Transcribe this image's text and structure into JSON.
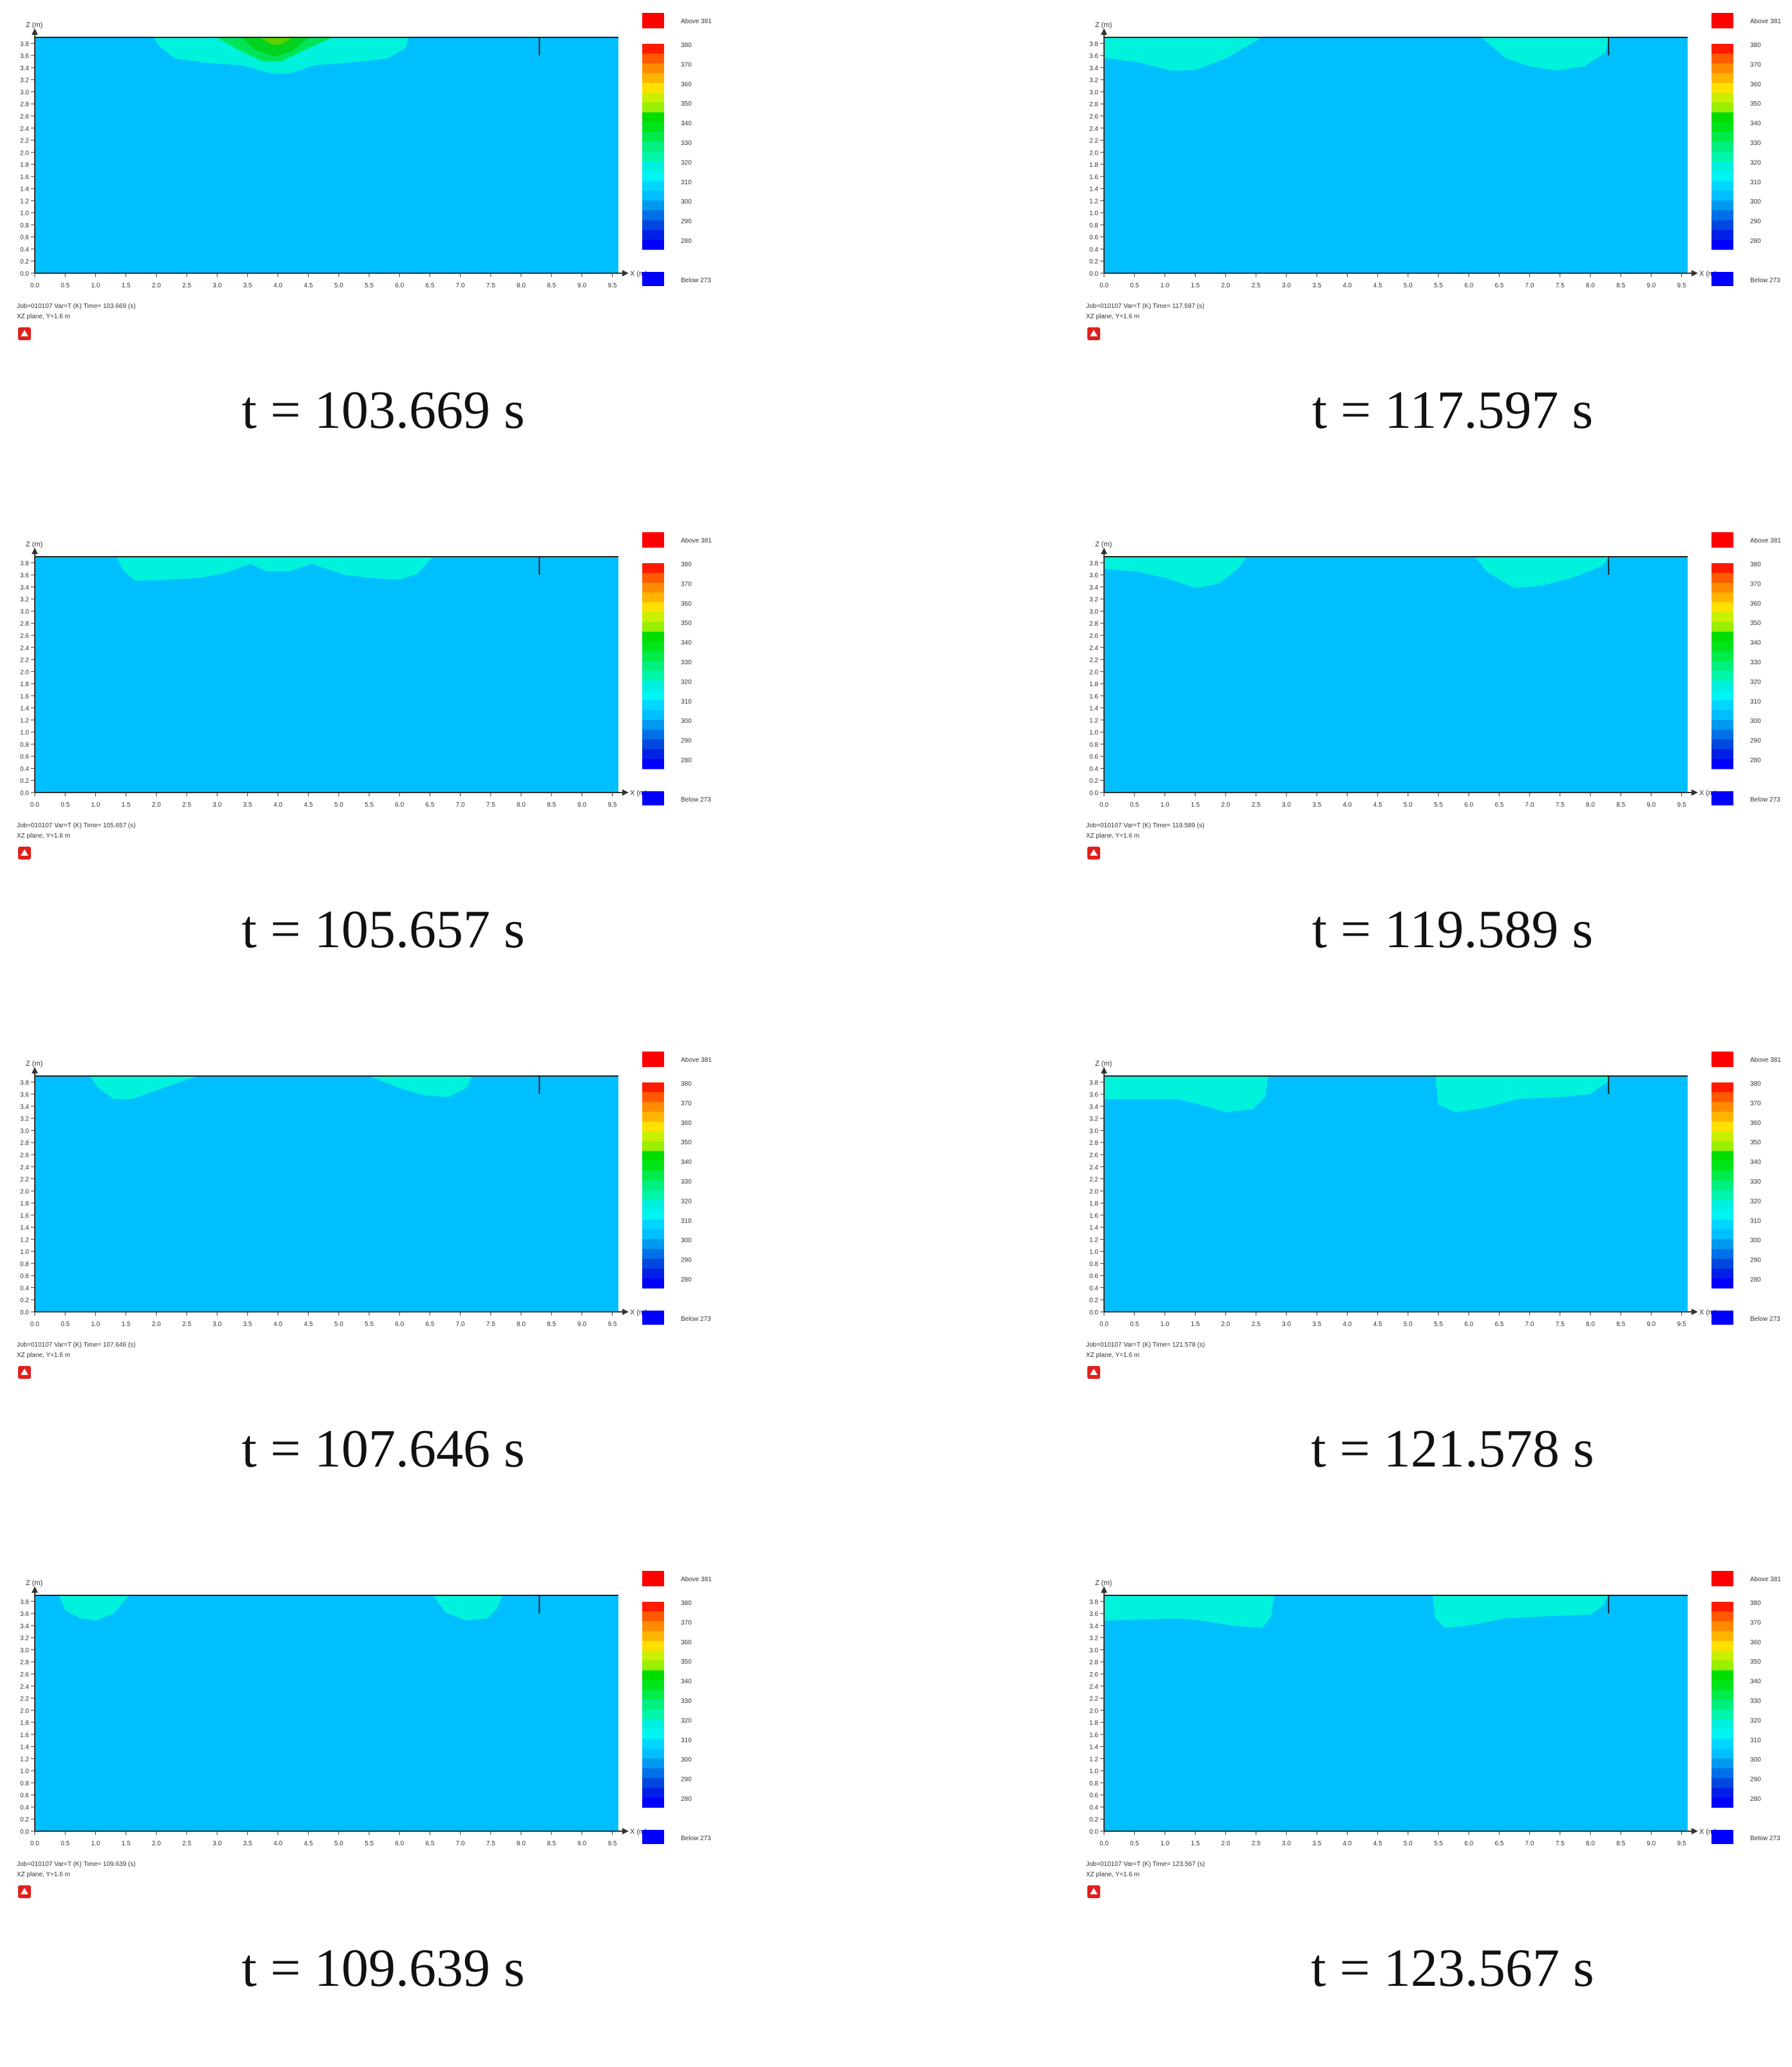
{
  "chart_data": [
    {
      "type": "heatmap",
      "time_label": "t = 103.669 s",
      "info_line1": "Job=010107   Var=T (K)  Time= 103.669 (s)",
      "info_line2": "XZ plane, Y=1.6 m",
      "pattern": "center-hot"
    },
    {
      "type": "heatmap",
      "time_label": "t = 117.597 s",
      "info_line1": "Job=010107   Var=T (K)  Time= 117.597 (s)",
      "info_line2": "XZ plane, Y=1.6 m",
      "pattern": "two-sides-a"
    },
    {
      "type": "heatmap",
      "time_label": "t = 105.657 s",
      "info_line1": "Job=010107   Var=T (K)  Time= 105.657 (s)",
      "info_line2": "XZ plane, Y=1.6 m",
      "pattern": "wide-layer"
    },
    {
      "type": "heatmap",
      "time_label": "t = 119.589 s",
      "info_line1": "Job=010107   Var=T (K)  Time= 119.589 (s)",
      "info_line2": "XZ plane, Y=1.6 m",
      "pattern": "two-sides-b"
    },
    {
      "type": "heatmap",
      "time_label": "t = 107.646 s",
      "info_line1": "Job=010107   Var=T (K)  Time= 107.646 (s)",
      "info_line2": "XZ plane, Y=1.6 m",
      "pattern": "two-small-a"
    },
    {
      "type": "heatmap",
      "time_label": "t = 121.578 s",
      "info_line1": "Job=010107   Var=T (K)  Time= 121.578 (s)",
      "info_line2": "XZ plane, Y=1.6 m",
      "pattern": "two-wide-a"
    },
    {
      "type": "heatmap",
      "time_label": "t = 109.639 s",
      "info_line1": "Job=010107   Var=T (K)  Time= 109.639 (s)",
      "info_line2": "XZ plane, Y=1.6 m",
      "pattern": "two-small-b"
    },
    {
      "type": "heatmap",
      "time_label": "t = 123.567 s",
      "info_line1": "Job=010107   Var=T (K)  Time= 123.567 (s)",
      "info_line2": "XZ plane, Y=1.6 m",
      "pattern": "two-wide-b"
    }
  ],
  "axes": {
    "xlabel": "X (m)",
    "ylabel": "Z (m)",
    "x_ticks": [
      "0.0",
      "0.5",
      "1.0",
      "1.5",
      "2.0",
      "2.5",
      "3.0",
      "3.5",
      "4.0",
      "4.5",
      "5.0",
      "5.5",
      "6.0",
      "6.5",
      "7.0",
      "7.5",
      "8.0",
      "8.5",
      "9.0",
      "9.5"
    ],
    "y_ticks": [
      "0.0",
      "0.2",
      "0.4",
      "0.6",
      "0.8",
      "1.0",
      "1.2",
      "1.4",
      "1.6",
      "1.8",
      "2.0",
      "2.2",
      "2.4",
      "2.6",
      "2.8",
      "3.0",
      "3.2",
      "3.4",
      "3.6",
      "3.8"
    ]
  },
  "legend": {
    "above_label": "Above 381",
    "below_label": "Below 273",
    "above_color": "#ff0000",
    "below_color": "#0000ff",
    "bands": [
      {
        "color": "#ff1a00",
        "label": "380"
      },
      {
        "color": "#ff5a00",
        "label": ""
      },
      {
        "color": "#ff8c00",
        "label": "370"
      },
      {
        "color": "#ffb400",
        "label": ""
      },
      {
        "color": "#ffe000",
        "label": "360"
      },
      {
        "color": "#c8f000",
        "label": ""
      },
      {
        "color": "#9aee00",
        "label": "350"
      },
      {
        "color": "#00dd00",
        "label": ""
      },
      {
        "color": "#00e41a",
        "label": "340"
      },
      {
        "color": "#00ec4a",
        "label": ""
      },
      {
        "color": "#00f080",
        "label": "330"
      },
      {
        "color": "#00f5a8",
        "label": ""
      },
      {
        "color": "#00f0e0",
        "label": "320"
      },
      {
        "color": "#00f4f2",
        "label": ""
      },
      {
        "color": "#00d6ff",
        "label": "310"
      },
      {
        "color": "#00bfff",
        "label": ""
      },
      {
        "color": "#0099f0",
        "label": "300"
      },
      {
        "color": "#0070e8",
        "label": ""
      },
      {
        "color": "#0048e0",
        "label": "290"
      },
      {
        "color": "#0020e8",
        "label": ""
      },
      {
        "color": "#0000ff",
        "label": "280"
      }
    ],
    "field_color": "#00bfff",
    "warm_color": "#00f2dc",
    "hot_color_1": "#00e45a",
    "hot_color_2": "#00d21e",
    "hot_color_3": "#5ad200"
  }
}
